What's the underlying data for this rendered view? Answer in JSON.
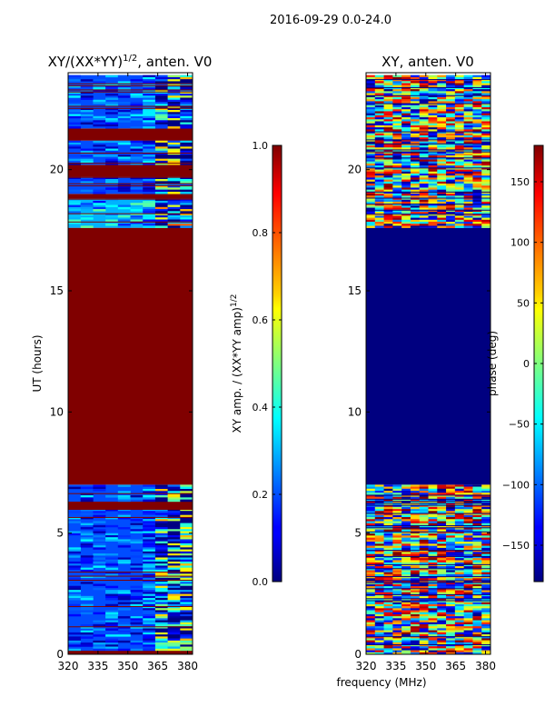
{
  "suptitle": "2016-09-29 0.0-24.0",
  "chart_data": [
    {
      "type": "heatmap",
      "title_main": "XY/(XX*YY)",
      "title_exp": "1/2",
      "title_rest": ", anten. V0",
      "xlabel": "",
      "ylabel": "UT (hours)",
      "x_ticks": [
        320,
        335,
        350,
        365,
        380
      ],
      "x_range": [
        320,
        382.5
      ],
      "y_ticks": [
        0,
        5,
        10,
        15,
        20
      ],
      "y_range": [
        0,
        24
      ],
      "colorbar": {
        "label_main": "XY amp. / (XX*YY amp)",
        "label_exp": "1/2",
        "ticks": [
          "0.0",
          "0.2",
          "0.4",
          "0.6",
          "0.8",
          "1.0"
        ],
        "range": [
          0,
          1
        ],
        "colormap": "jet"
      },
      "regions": [
        {
          "ut_start": 0.0,
          "ut_end": 0.15,
          "value": 1.0,
          "note": "flagged"
        },
        {
          "ut_start": 0.15,
          "ut_end": 6.0,
          "value": 0.2,
          "note": "banded low amplitude"
        },
        {
          "ut_start": 6.0,
          "ut_end": 6.3,
          "value": 1.0,
          "note": "flagged"
        },
        {
          "ut_start": 6.3,
          "ut_end": 7.0,
          "value": 0.2,
          "note": "banded low amplitude"
        },
        {
          "ut_start": 7.0,
          "ut_end": 17.6,
          "value": 1.0,
          "note": "flagged"
        },
        {
          "ut_start": 17.6,
          "ut_end": 18.8,
          "value": 0.3,
          "note": "low amplitude"
        },
        {
          "ut_start": 18.8,
          "ut_end": 19.0,
          "value": 1.0,
          "note": "flagged"
        },
        {
          "ut_start": 19.0,
          "ut_end": 19.7,
          "value": 0.2,
          "note": "low amplitude"
        },
        {
          "ut_start": 19.7,
          "ut_end": 20.2,
          "value": 1.0,
          "note": "flagged"
        },
        {
          "ut_start": 20.2,
          "ut_end": 21.2,
          "value": 0.2,
          "note": "low amplitude"
        },
        {
          "ut_start": 21.2,
          "ut_end": 21.7,
          "value": 1.0,
          "note": "flagged"
        },
        {
          "ut_start": 21.7,
          "ut_end": 23.9,
          "value": 0.2,
          "note": "low amplitude"
        }
      ]
    },
    {
      "type": "heatmap",
      "title": "XY, anten. V0",
      "xlabel": "frequency (MHz)",
      "ylabel": "",
      "x_ticks": [
        320,
        335,
        350,
        365,
        380
      ],
      "x_range": [
        320,
        382.5
      ],
      "y_ticks": [
        0,
        5,
        10,
        15,
        20
      ],
      "y_range": [
        0,
        24
      ],
      "colorbar": {
        "label": "phase (deg)",
        "ticks": [
          "150",
          "100",
          "50",
          "0",
          "−50",
          "−100",
          "−150"
        ],
        "range": [
          -180,
          180
        ],
        "colormap": "jet"
      },
      "regions": [
        {
          "ut_start": 0.0,
          "ut_end": 3.8,
          "value": 0,
          "note": "mixed phases"
        },
        {
          "ut_start": 3.8,
          "ut_end": 6.0,
          "value": 20,
          "note": "mixed phases"
        },
        {
          "ut_start": 6.0,
          "ut_end": 7.0,
          "value": 0,
          "note": "mixed phases"
        },
        {
          "ut_start": 7.0,
          "ut_end": 17.6,
          "value": -180,
          "note": "flagged"
        },
        {
          "ut_start": 17.6,
          "ut_end": 23.9,
          "value": 0,
          "note": "mixed phases"
        }
      ]
    }
  ]
}
